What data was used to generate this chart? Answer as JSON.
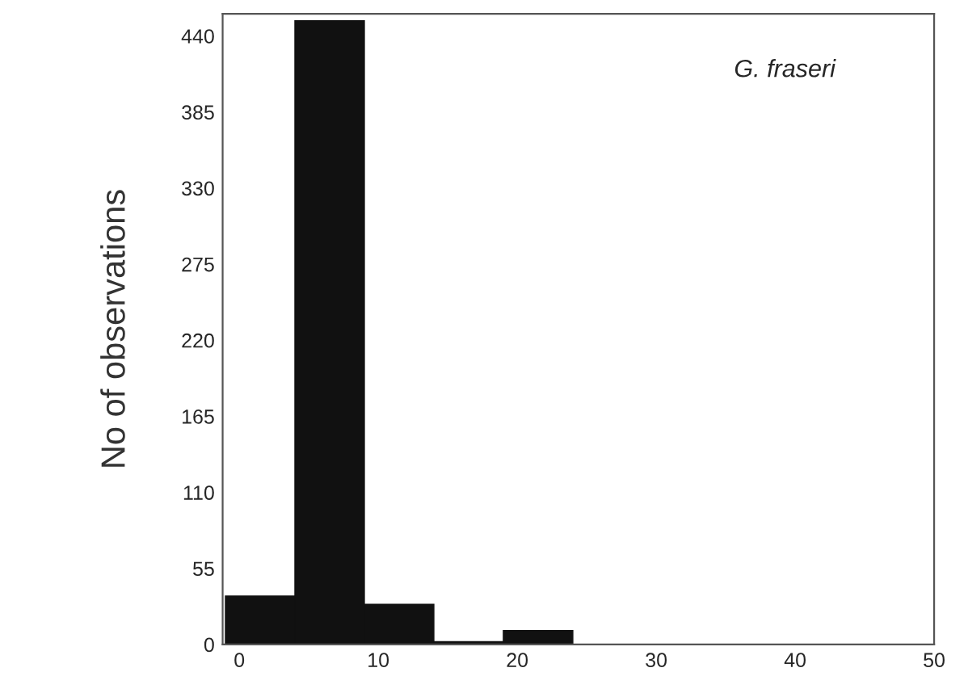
{
  "chart_data": {
    "type": "histogram",
    "ylabel": "No of observations",
    "annotations": [
      "G. fraseri"
    ],
    "bins": [
      -1,
      4,
      9,
      14,
      19,
      24,
      29,
      34,
      39,
      44,
      49
    ],
    "values": [
      35,
      451,
      29,
      2,
      10,
      null,
      0,
      0,
      0,
      0
    ],
    "color": "#111111",
    "xlim": [
      -1.2,
      50
    ],
    "ylim": [
      0,
      456
    ],
    "xticks": [
      0,
      10,
      20,
      30,
      40,
      50
    ],
    "yticks": [
      0,
      55,
      110,
      165,
      220,
      275,
      330,
      385,
      440
    ],
    "grid": false,
    "legend": false
  }
}
